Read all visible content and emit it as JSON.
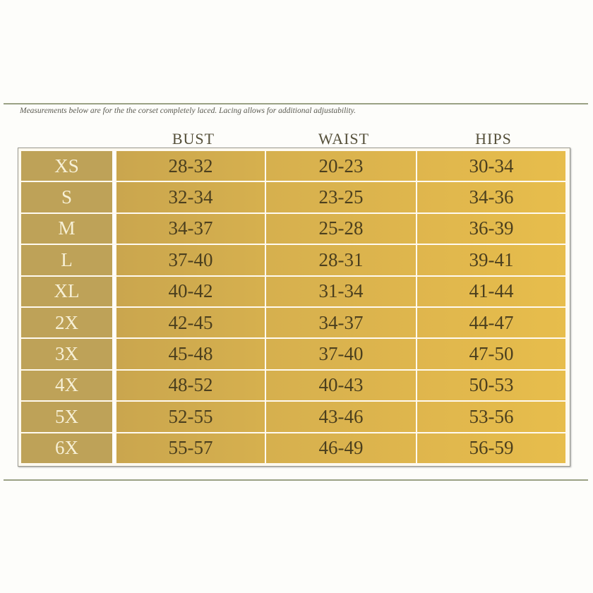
{
  "caption": "Measurements below are for the the corset completely laced. Lacing allows for additional adjustability.",
  "headers": {
    "bust": "BUST",
    "waist": "WAIST",
    "hips": "HIPS"
  },
  "colors": {
    "size_column": "#bea258",
    "cells": "#d6b04e",
    "text": "#4b3f1e",
    "rule": "#9aa184"
  },
  "rows": [
    {
      "size": "XS",
      "bust": "28-32",
      "waist": "20-23",
      "hips": "30-34"
    },
    {
      "size": "S",
      "bust": "32-34",
      "waist": "23-25",
      "hips": "34-36"
    },
    {
      "size": "M",
      "bust": "34-37",
      "waist": "25-28",
      "hips": "36-39"
    },
    {
      "size": "L",
      "bust": "37-40",
      "waist": "28-31",
      "hips": "39-41"
    },
    {
      "size": "XL",
      "bust": "40-42",
      "waist": "31-34",
      "hips": "41-44"
    },
    {
      "size": "2X",
      "bust": "42-45",
      "waist": "34-37",
      "hips": "44-47"
    },
    {
      "size": "3X",
      "bust": "45-48",
      "waist": "37-40",
      "hips": "47-50"
    },
    {
      "size": "4X",
      "bust": "48-52",
      "waist": "40-43",
      "hips": "50-53"
    },
    {
      "size": "5X",
      "bust": "52-55",
      "waist": "43-46",
      "hips": "53-56"
    },
    {
      "size": "6X",
      "bust": "55-57",
      "waist": "46-49",
      "hips": "56-59"
    }
  ]
}
